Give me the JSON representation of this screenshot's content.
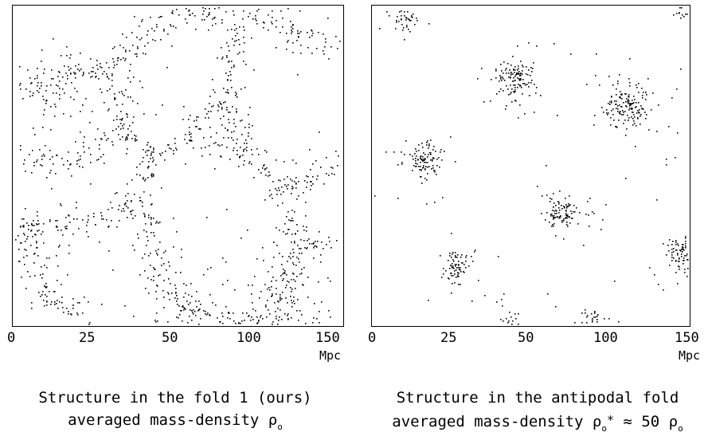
{
  "panels": [
    {
      "id": "fold-1",
      "x_ticks": [
        "0",
        "25",
        "50",
        "100",
        "150"
      ],
      "unit": "Mpc",
      "caption_line1": "Structure in the fold 1 (ours)",
      "caption_line2_text": "averaged mass-density ",
      "caption_line2_symbol": "ρ",
      "caption_line2_sub": "o",
      "pattern": "cellular filaments and voids",
      "point_color": "#000000"
    },
    {
      "id": "antipodal-fold",
      "x_ticks": [
        "0",
        "25",
        "50",
        "100",
        "150"
      ],
      "unit": "Mpc",
      "caption_line1": "Structure in the antipodal fold",
      "caption_line2_text": "averaged mass-density ",
      "caption_line2_symbol": "ρ",
      "caption_line2_sub": "o",
      "caption_line2_star": "*",
      "caption_line2_rel": " ≈ 50 ",
      "caption_line2_symbol2": "ρ",
      "caption_line2_sub2": "o",
      "pattern": "isolated clusters",
      "point_color": "#000000"
    }
  ]
}
